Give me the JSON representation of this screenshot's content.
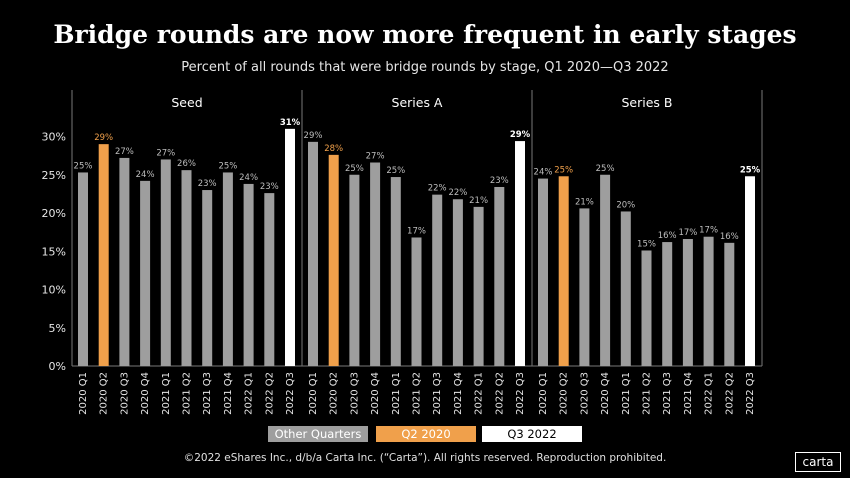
{
  "title": "Bridge rounds are now more frequent in early stages",
  "subtitle": "Percent of all rounds that were bridge rounds by stage, Q1 2020—Q3 2022",
  "footer": "©2022 eShares Inc., d/b/a Carta Inc. (“Carta”). All rights reserved. Reproduction prohibited.",
  "logo": "carta",
  "colors": {
    "other": "#9e9e9e",
    "q2_2020": "#f0a04b",
    "q3_2022": "#ffffff",
    "background": "#000000",
    "text": "#e6e6e6"
  },
  "legend": [
    {
      "label": "Other Quarters",
      "key": "other"
    },
    {
      "label": "Q2 2020",
      "key": "q2_2020"
    },
    {
      "label": "Q3 2022",
      "key": "q3_2022"
    }
  ],
  "chart_data": {
    "type": "bar",
    "title": "Bridge rounds are now more frequent in early stages",
    "subtitle": "Percent of all rounds that were bridge rounds by stage, Q1 2020—Q3 2022",
    "categories": [
      "2020 Q1",
      "2020 Q2",
      "2020 Q3",
      "2020 Q4",
      "2021 Q1",
      "2021 Q2",
      "2021 Q3",
      "2021 Q4",
      "2022 Q1",
      "2022 Q2",
      "2022 Q3"
    ],
    "yticks": [
      "0%",
      "5%",
      "10%",
      "15%",
      "20%",
      "25%",
      "30%"
    ],
    "ylim": [
      0,
      32
    ],
    "grid": false,
    "legend_position": "bottom",
    "panels": [
      {
        "name": "Seed",
        "values": [
          25.3,
          29.0,
          27.2,
          24.2,
          27.0,
          25.6,
          23.0,
          25.3,
          23.8,
          22.6,
          31.0
        ],
        "labels": [
          "25%",
          "29%",
          "27%",
          "24%",
          "27%",
          "26%",
          "23%",
          "25%",
          "24%",
          "23%",
          "31%"
        ]
      },
      {
        "name": "Series A",
        "values": [
          29.3,
          27.6,
          25.0,
          26.6,
          24.7,
          16.8,
          22.4,
          21.8,
          20.8,
          23.4,
          29.4
        ],
        "labels": [
          "29%",
          "28%",
          "25%",
          "27%",
          "25%",
          "17%",
          "22%",
          "22%",
          "21%",
          "23%",
          "29%"
        ]
      },
      {
        "name": "Series B",
        "values": [
          24.5,
          24.8,
          20.6,
          25.0,
          20.2,
          15.1,
          16.2,
          16.6,
          16.9,
          16.1,
          24.8
        ],
        "labels": [
          "24%",
          "25%",
          "21%",
          "25%",
          "20%",
          "15%",
          "16%",
          "17%",
          "17%",
          "16%",
          "25%"
        ]
      }
    ]
  }
}
